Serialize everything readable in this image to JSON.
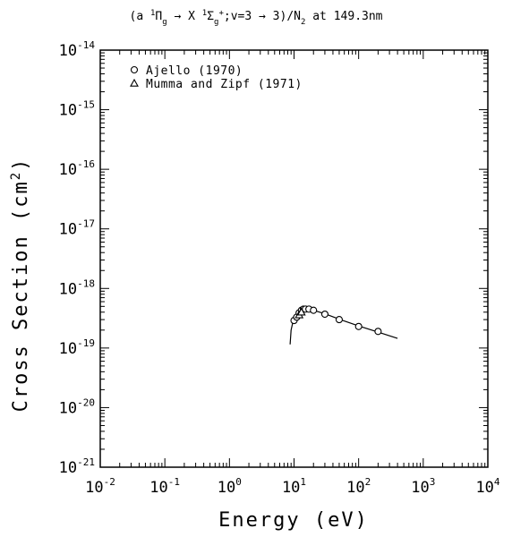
{
  "chart_data": {
    "type": "scatter",
    "title": {
      "parts": [
        {
          "text": "(a ",
          "sup": false
        },
        {
          "text": "1",
          "sup": true
        },
        {
          "text": "Π",
          "sup": false
        },
        {
          "text": "g",
          "sub": true
        },
        {
          "text": " → X ",
          "sup": false
        },
        {
          "text": "1",
          "sup": true
        },
        {
          "text": "Σ",
          "sup": false
        },
        {
          "text": "g",
          "sub": true
        },
        {
          "text": "+",
          "sup": true
        },
        {
          "text": ";v=3 → 3)/N",
          "sup": false
        },
        {
          "text": "2",
          "sub": true
        },
        {
          "text": " at 149.3nm",
          "sup": false
        }
      ]
    },
    "xlabel": "Energy (eV)",
    "ylabel": "Cross Section (cm",
    "ylabel_sup": "2",
    "ylabel_close": ")",
    "xscale": "log",
    "yscale": "log",
    "xlim": [
      0.01,
      10000
    ],
    "ylim": [
      1e-21,
      1e-14
    ],
    "x_ticks": [
      {
        "base": "10",
        "exp": "-2",
        "value": 0.01
      },
      {
        "base": "10",
        "exp": "-1",
        "value": 0.1
      },
      {
        "base": "10",
        "exp": "0",
        "value": 1
      },
      {
        "base": "10",
        "exp": "1",
        "value": 10
      },
      {
        "base": "10",
        "exp": "2",
        "value": 100
      },
      {
        "base": "10",
        "exp": "3",
        "value": 1000
      },
      {
        "base": "10",
        "exp": "4",
        "value": 10000
      }
    ],
    "y_ticks": [
      {
        "base": "10",
        "exp": "-21",
        "value": 1e-21
      },
      {
        "base": "10",
        "exp": "-20",
        "value": 1e-20
      },
      {
        "base": "10",
        "exp": "-19",
        "value": 1e-19
      },
      {
        "base": "10",
        "exp": "-18",
        "value": 1e-18
      },
      {
        "base": "10",
        "exp": "-17",
        "value": 1e-17
      },
      {
        "base": "10",
        "exp": "-16",
        "value": 1e-16
      },
      {
        "base": "10",
        "exp": "-15",
        "value": 1e-15
      },
      {
        "base": "10",
        "exp": "-14",
        "value": 1e-14
      }
    ],
    "grid": false,
    "legend_position": "top-left",
    "series": [
      {
        "name": "Ajello (1970)",
        "marker": "circle",
        "points": [
          {
            "x": 10.0,
            "y": 2.9e-19
          },
          {
            "x": 11.0,
            "y": 3.3e-19
          },
          {
            "x": 12.0,
            "y": 3.9e-19
          },
          {
            "x": 13.0,
            "y": 4.3e-19
          },
          {
            "x": 14.0,
            "y": 4.5e-19
          },
          {
            "x": 15.0,
            "y": 4.5e-19
          },
          {
            "x": 17.0,
            "y": 4.5e-19
          },
          {
            "x": 20.0,
            "y": 4.3e-19
          },
          {
            "x": 30.0,
            "y": 3.7e-19
          },
          {
            "x": 50.0,
            "y": 3e-19
          },
          {
            "x": 100.0,
            "y": 2.3e-19
          },
          {
            "x": 200.0,
            "y": 1.9e-19
          }
        ]
      },
      {
        "name": "Mumma and Zipf (1971)",
        "marker": "triangle",
        "points": [
          {
            "x": 12.0,
            "y": 3.6e-19
          },
          {
            "x": 13.0,
            "y": 4e-19
          }
        ]
      }
    ],
    "fit_curve": {
      "points": [
        {
          "x": 8.7,
          "y": 1.15e-19
        },
        {
          "x": 9.0,
          "y": 2e-19
        },
        {
          "x": 9.5,
          "y": 2.6e-19
        },
        {
          "x": 10.0,
          "y": 3e-19
        },
        {
          "x": 11.0,
          "y": 3.5e-19
        },
        {
          "x": 12.0,
          "y": 4e-19
        },
        {
          "x": 13.0,
          "y": 4.3e-19
        },
        {
          "x": 14.5,
          "y": 4.5e-19
        },
        {
          "x": 16.0,
          "y": 4.5e-19
        },
        {
          "x": 20.0,
          "y": 4.3e-19
        },
        {
          "x": 30.0,
          "y": 3.75e-19
        },
        {
          "x": 50.0,
          "y": 3.05e-19
        },
        {
          "x": 100.0,
          "y": 2.35e-19
        },
        {
          "x": 200.0,
          "y": 1.85e-19
        },
        {
          "x": 400.0,
          "y": 1.45e-19
        }
      ]
    }
  }
}
